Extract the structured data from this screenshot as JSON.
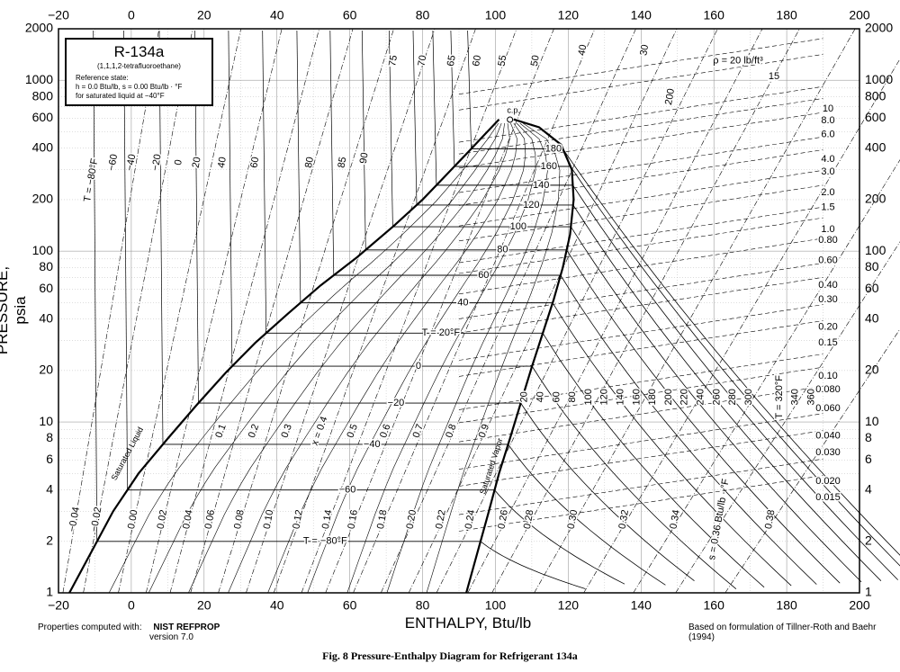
{
  "figure": {
    "caption": "Fig. 8    Pressure-Enthalpy Diagram for Refrigerant 134a",
    "left_note_prefix": "Properties computed with:",
    "left_note_bold": "NIST REFPROP",
    "left_note_version": "version 7.0",
    "right_note": "Based on formulation of Tillner-Roth and Baehr (1994)"
  },
  "legend": {
    "title": "R-134a",
    "subtitle": "(1,1,1,2-tetrafluoroethane)",
    "ref_line1": "Reference state:",
    "ref_line2": "h = 0.0 Btu/lb,   s = 0.00 Btu/lb · °F",
    "ref_line3": "for saturated liquid at −40°F"
  },
  "chart_data": {
    "type": "line",
    "title": "",
    "xlabel": "ENTHALPY, Btu/lb",
    "ylabel": "PRESSURE, psia",
    "xlim": [
      -20,
      200
    ],
    "ylim": [
      1,
      2000
    ],
    "yscale": "log",
    "x_ticks": [
      "−20",
      "0",
      "20",
      "40",
      "60",
      "80",
      "100",
      "120",
      "140",
      "160",
      "180",
      "200"
    ],
    "y_ticks": [
      {
        "value": 1,
        "label": "1"
      },
      {
        "value": 2,
        "label": "2"
      },
      {
        "value": 4,
        "label": "4"
      },
      {
        "value": 6,
        "label": "6"
      },
      {
        "value": 8,
        "label": "8"
      },
      {
        "value": 10,
        "label": "10"
      },
      {
        "value": 20,
        "label": "20"
      },
      {
        "value": 40,
        "label": "40"
      },
      {
        "value": 60,
        "label": "60"
      },
      {
        "value": 80,
        "label": "80"
      },
      {
        "value": 100,
        "label": "100"
      },
      {
        "value": 200,
        "label": "200"
      },
      {
        "value": 400,
        "label": "400"
      },
      {
        "value": 600,
        "label": "600"
      },
      {
        "value": 800,
        "label": "800"
      },
      {
        "value": 1000,
        "label": "1000"
      },
      {
        "value": 2000,
        "label": "2000"
      }
    ],
    "grid": true,
    "saturated_liquid": {
      "label": "Saturated Liquid",
      "h": [
        -17,
        -10,
        -5,
        2,
        10,
        18,
        26,
        34,
        43,
        52,
        62,
        72,
        80,
        86,
        92,
        97,
        101
      ],
      "p": [
        1,
        1.9,
        3.0,
        5.0,
        8.0,
        12.6,
        19.5,
        29,
        43,
        63,
        92,
        140,
        200,
        272,
        370,
        480,
        590
      ]
    },
    "saturated_vapor": {
      "label": "Saturated Vapor",
      "h": [
        92,
        95,
        98,
        101,
        104,
        107,
        110,
        113,
        116,
        118.5,
        120.5,
        121.5,
        121,
        118,
        112,
        105
      ],
      "p": [
        1,
        1.7,
        2.9,
        5.0,
        8.0,
        13,
        21,
        33,
        52,
        80,
        125,
        200,
        300,
        420,
        530,
        590
      ]
    },
    "critical_point": {
      "label": "c.p.",
      "h": 104,
      "p": 588
    },
    "isotherms": [
      {
        "label": "T = −80°F",
        "t": -80,
        "p": 2.0,
        "h_liq": -2,
        "h_vap": 93
      },
      {
        "label": "−60",
        "t": -60,
        "p": 4.0,
        "h_liq": -7,
        "h_vap": 96
      },
      {
        "label": "−40",
        "t": -40,
        "p": 7.4,
        "h_liq": 1,
        "h_vap": 99
      },
      {
        "label": "−20",
        "t": -20,
        "p": 12.9,
        "h_liq": 6,
        "h_vap": 102
      },
      {
        "label": "0",
        "t": 0,
        "p": 21.2,
        "h_liq": 12,
        "h_vap": 105
      },
      {
        "label": "T = 20°F",
        "t": 20,
        "p": 33.1,
        "h_liq": 18,
        "h_vap": 108
      },
      {
        "label": "40",
        "t": 40,
        "p": 49.8,
        "h_liq": 27,
        "h_vap": 110
      },
      {
        "label": "60",
        "t": 60,
        "p": 72.2,
        "h_liq": 36,
        "h_vap": 113
      },
      {
        "label": "80",
        "t": 80,
        "p": 101.6,
        "h_liq": 38,
        "h_vap": 115
      },
      {
        "label": "100",
        "t": 100,
        "p": 138.9,
        "h_liq": 44,
        "h_vap": 117
      },
      {
        "label": "120",
        "t": 120,
        "p": 186,
        "h_liq": 52,
        "h_vap": 118.5
      },
      {
        "label": "140",
        "t": 140,
        "p": 243,
        "h_liq": 60,
        "h_vap": 119
      },
      {
        "label": "160",
        "t": 160,
        "p": 313,
        "h_liq": 68,
        "h_vap": 120
      },
      {
        "label": "180",
        "t": 180,
        "p": 397,
        "h_liq": 78,
        "h_vap": 118
      }
    ],
    "quality_labels": [
      "0.1",
      "0.2",
      "0.3",
      "x = 0.4",
      "0.5",
      "0.6",
      "0.7",
      "0.8",
      "0.9"
    ],
    "entropy_labels": [
      "−0.04",
      "−0.02",
      "0.00",
      "0.02",
      "0.04",
      "0.06",
      "0.08",
      "0.10",
      "0.12",
      "0.14",
      "0.16",
      "0.18",
      "0.20",
      "0.22",
      "0.24",
      "0.26",
      "0.28",
      "0.30",
      "0.32",
      "0.34",
      "s = 0.36 Btu/lb · °F",
      "0.38"
    ],
    "vapor_isotherm_labels": [
      "20",
      "40",
      "60",
      "80",
      "100",
      "120",
      "140",
      "160",
      "180",
      "200",
      "220",
      "240",
      "260",
      "280",
      "300",
      "T = 320°F",
      "340",
      "360"
    ],
    "density_labels": [
      "ρ = 20 lb/ft³",
      "15",
      "10",
      "8.0",
      "6.0",
      "4.0",
      "3.0",
      "2.0",
      "1.5",
      "1.0",
      "0.80",
      "0.60",
      "0.40",
      "0.30",
      "0.20",
      "0.15",
      "0.10",
      "0.080",
      "0.060",
      "0.040",
      "0.030",
      "0.020",
      "0.015"
    ],
    "upper_isotherm_labels": [
      "T = −80°F",
      "−60",
      "−40",
      "−20",
      "0",
      "20",
      "40",
      "60",
      "80",
      "85",
      "90",
      "75",
      "70",
      "65",
      "60",
      "55",
      "50",
      "40",
      "30",
      "200"
    ]
  }
}
